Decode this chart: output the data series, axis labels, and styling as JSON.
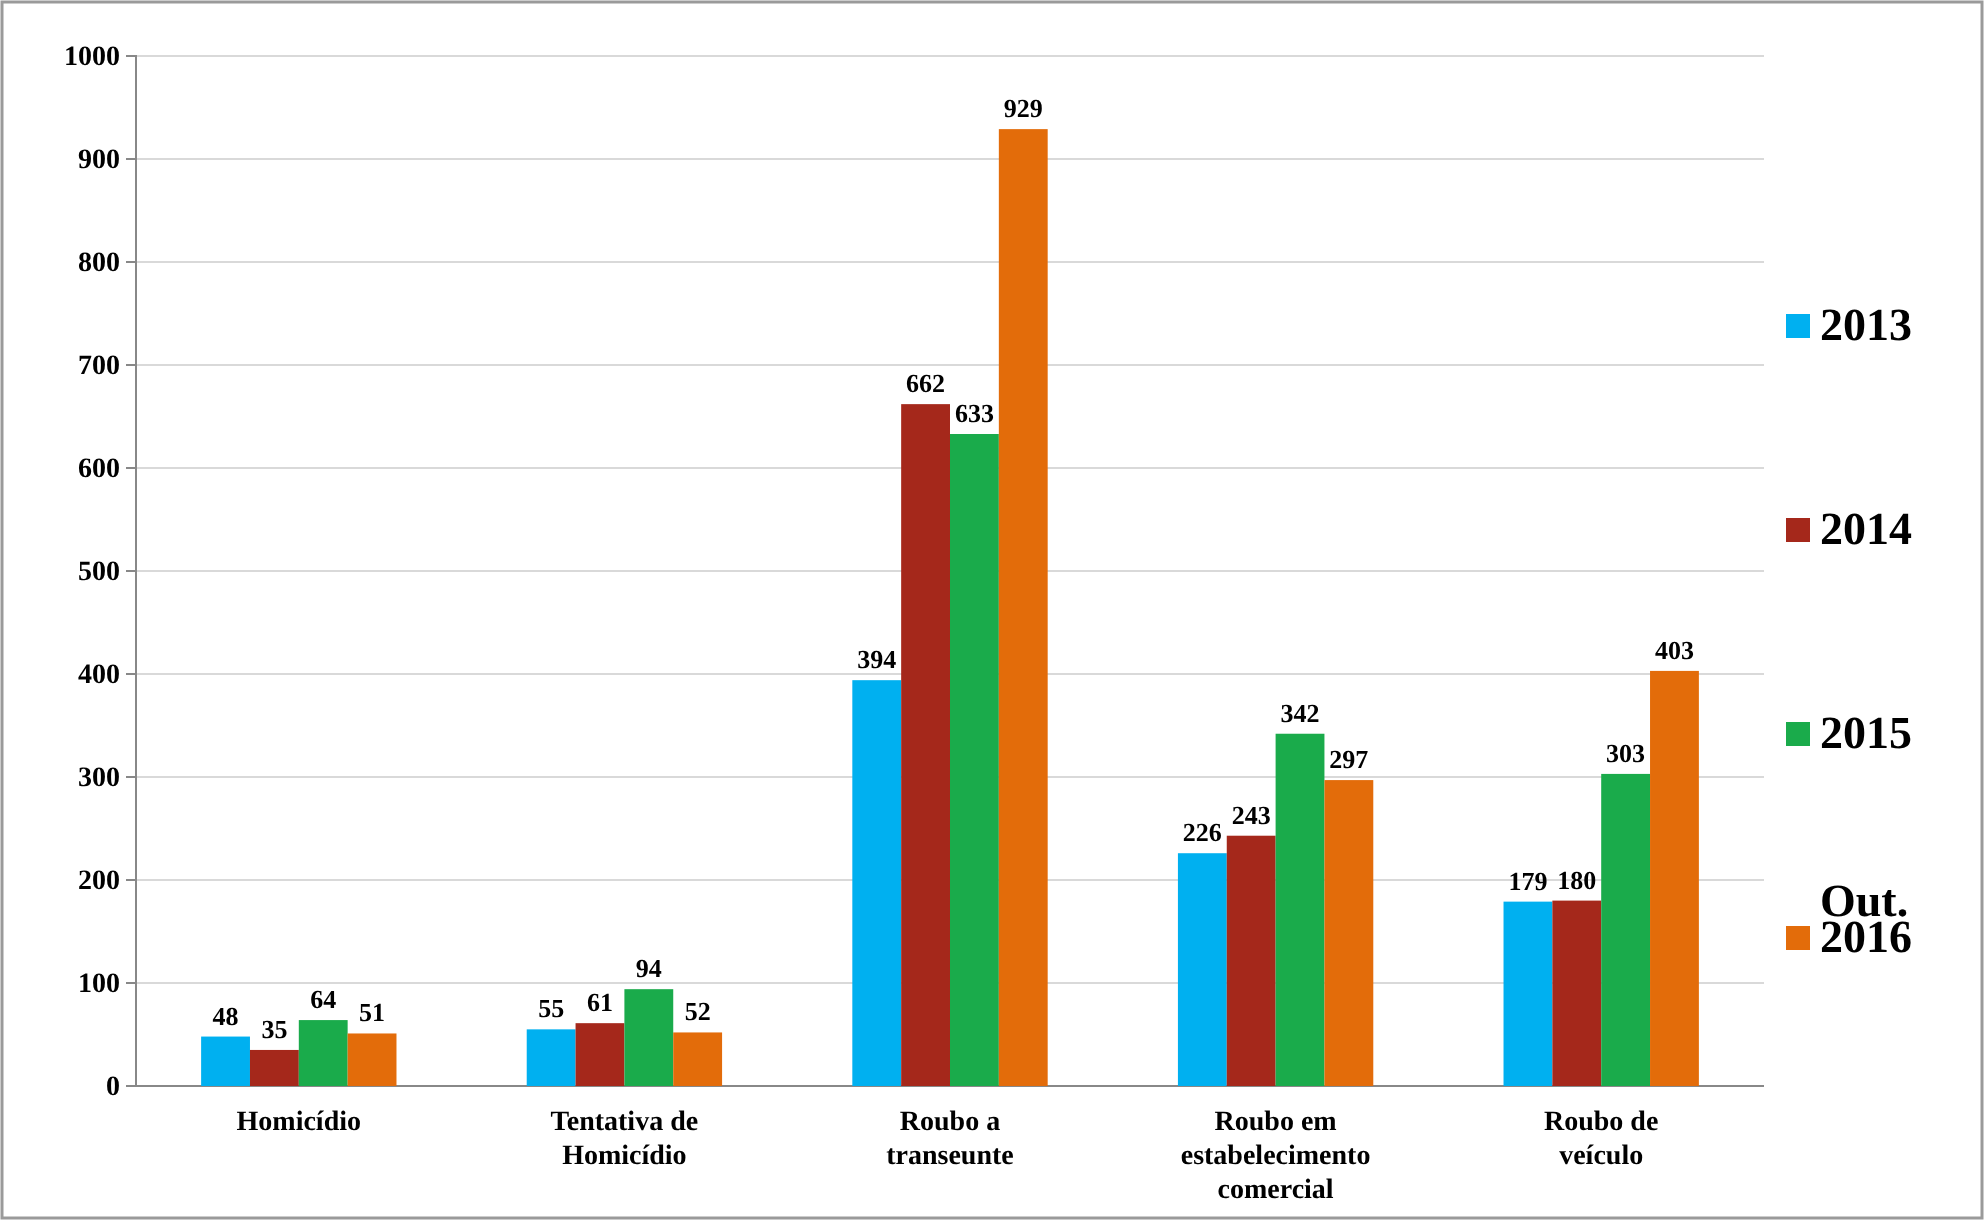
{
  "chart_data": {
    "type": "bar",
    "categories": [
      "Homicídio",
      "Tentativa de Homicídio",
      "Roubo a transeunte",
      "Roubo em estabelecimento comercial",
      "Roubo de veículo"
    ],
    "series": [
      {
        "name": "2013",
        "color": "#00b0f0",
        "values": [
          48,
          55,
          394,
          226,
          179
        ]
      },
      {
        "name": "2014",
        "color": "#a5281b",
        "values": [
          35,
          61,
          662,
          243,
          180
        ]
      },
      {
        "name": "2015",
        "color": "#1aab4b",
        "values": [
          64,
          94,
          633,
          342,
          303
        ]
      },
      {
        "name": "Out. 2016",
        "color": "#e36c0a",
        "values": [
          51,
          52,
          929,
          297,
          403
        ]
      }
    ],
    "ylim": [
      0,
      1000
    ],
    "yticks": [
      0,
      100,
      200,
      300,
      400,
      500,
      600,
      700,
      800,
      900,
      1000
    ],
    "grid": "y",
    "legend": "right",
    "data_labels": true
  }
}
